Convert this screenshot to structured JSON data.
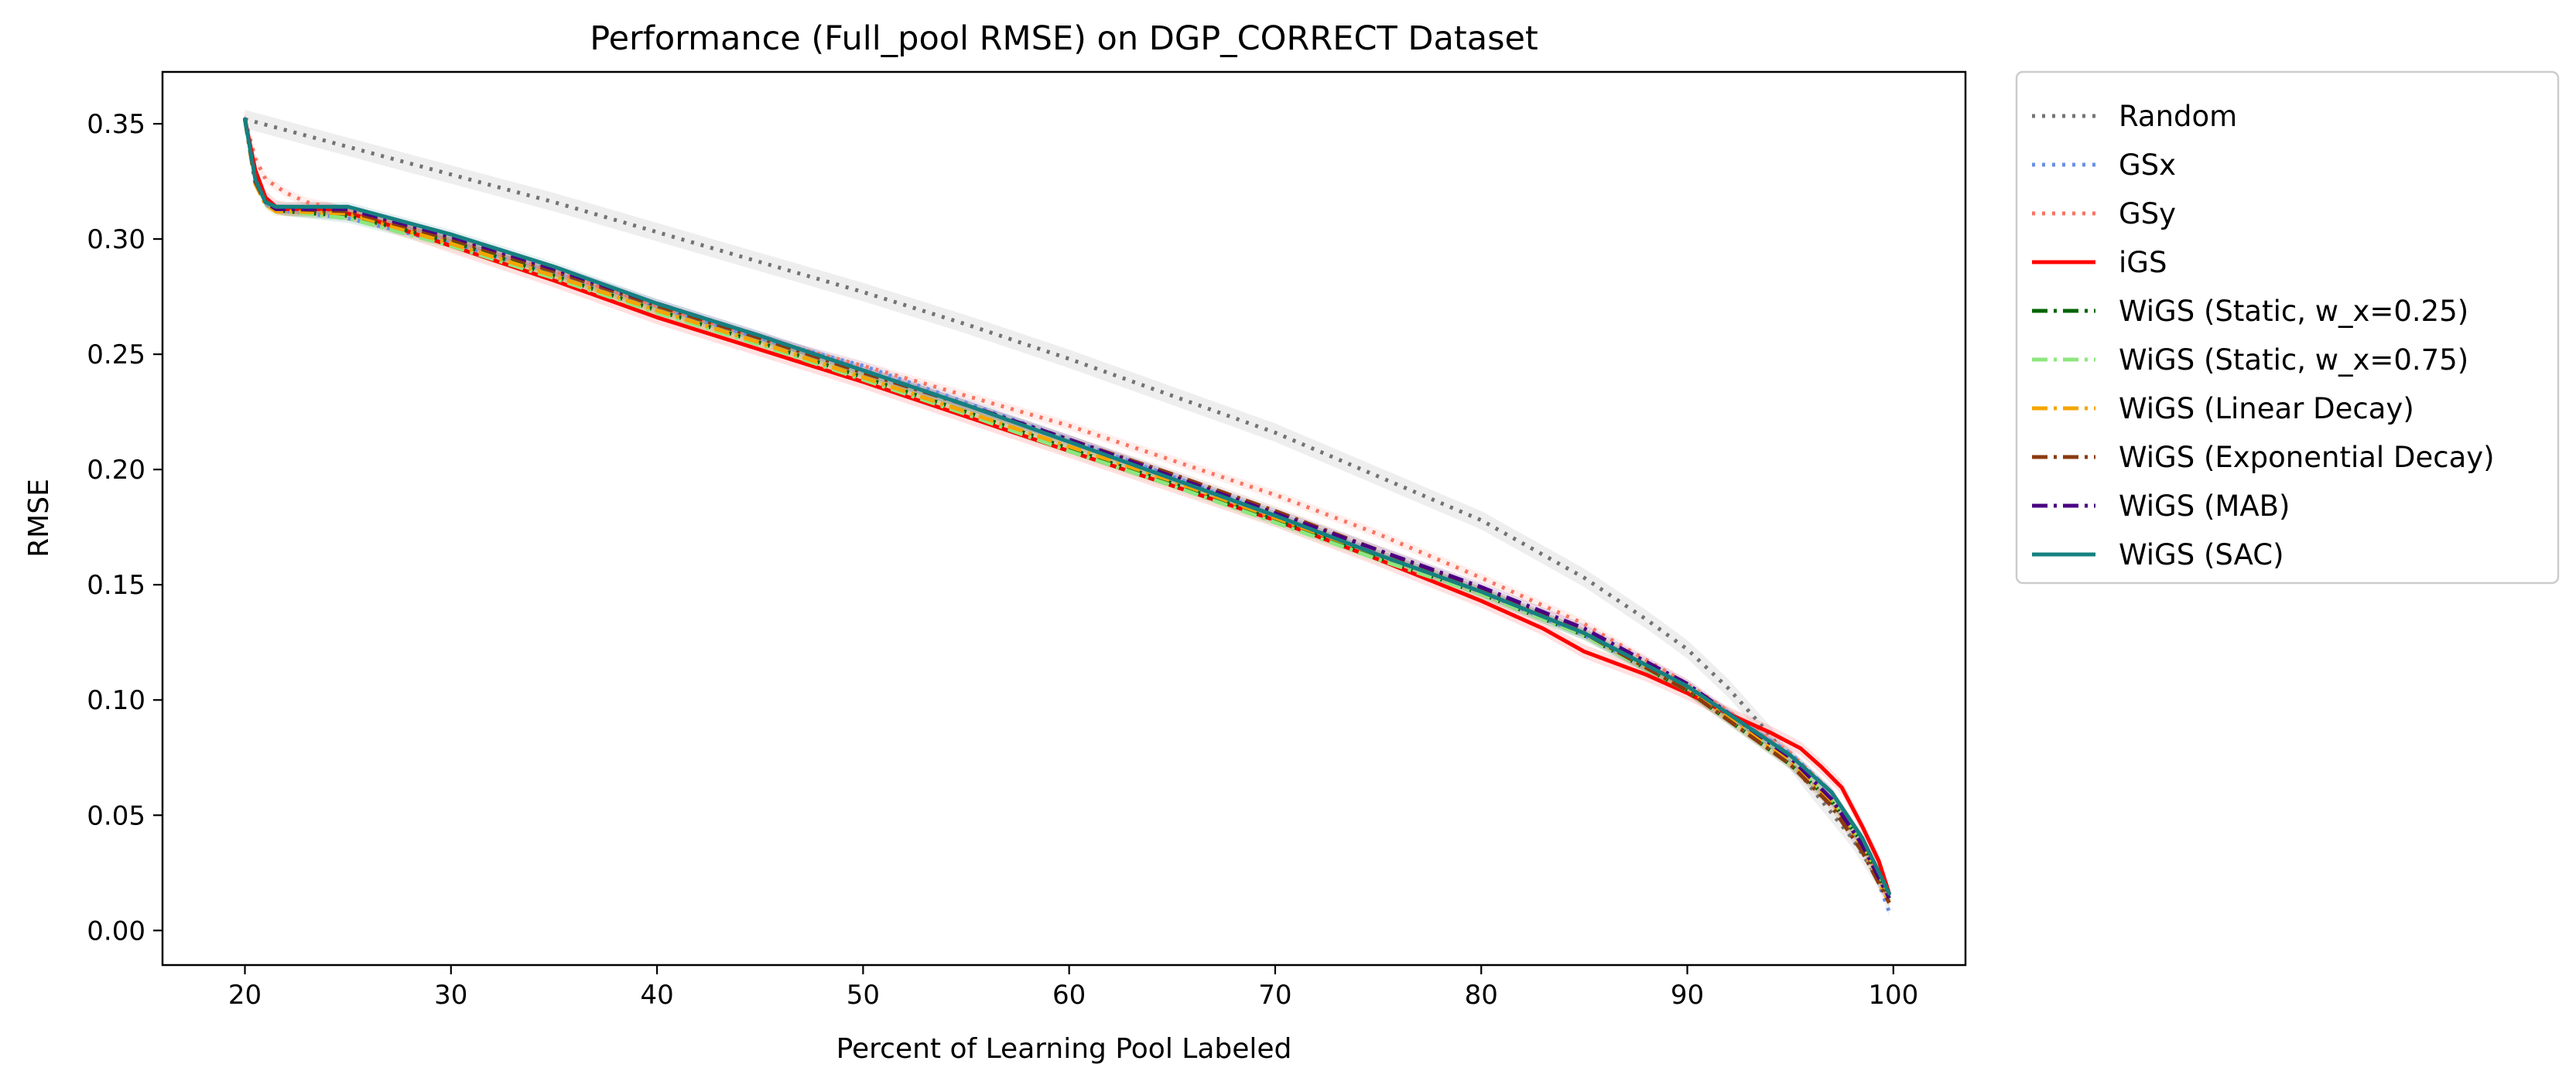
{
  "chart_data": {
    "type": "line",
    "title": "Performance (Full_pool RMSE) on DGP_CORRECT Dataset",
    "xlabel": "Percent of Learning Pool Labeled",
    "ylabel": "RMSE",
    "xlim": [
      16,
      103.5
    ],
    "ylim": [
      -0.015,
      0.3725
    ],
    "xticks": [
      20,
      30,
      40,
      50,
      60,
      70,
      80,
      90,
      100
    ],
    "yticks": [
      0.0,
      0.05,
      0.1,
      0.15,
      0.2,
      0.25,
      0.3,
      0.35
    ],
    "xtick_labels": [
      "20",
      "30",
      "40",
      "50",
      "60",
      "70",
      "80",
      "90",
      "100"
    ],
    "ytick_labels": [
      "0.00",
      "0.05",
      "0.10",
      "0.15",
      "0.20",
      "0.25",
      "0.30",
      "0.35"
    ],
    "grid": false,
    "legend_position": "outside-right",
    "series": [
      {
        "name": "Random",
        "color": "#737373",
        "dash": "dotted",
        "band": 0.004,
        "x": [
          20,
          25,
          30,
          35,
          40,
          45,
          50,
          55,
          60,
          65,
          70,
          75,
          80,
          85,
          88,
          90,
          92,
          94,
          96,
          98,
          99.8
        ],
        "y": [
          0.352,
          0.34,
          0.328,
          0.316,
          0.303,
          0.29,
          0.277,
          0.263,
          0.248,
          0.232,
          0.216,
          0.197,
          0.178,
          0.153,
          0.135,
          0.122,
          0.105,
          0.085,
          0.062,
          0.04,
          0.015
        ]
      },
      {
        "name": "GSx",
        "color": "#6a8fe6",
        "dash": "dotted",
        "band": 0.002,
        "x": [
          20,
          20.5,
          21,
          21.5,
          22,
          25,
          30,
          35,
          40,
          45,
          50,
          55,
          60,
          65,
          70,
          75,
          80,
          85,
          90,
          95,
          97,
          98.5,
          99.8
        ],
        "y": [
          0.352,
          0.327,
          0.316,
          0.313,
          0.312,
          0.309,
          0.298,
          0.285,
          0.27,
          0.257,
          0.245,
          0.229,
          0.213,
          0.197,
          0.18,
          0.163,
          0.147,
          0.128,
          0.105,
          0.077,
          0.06,
          0.04,
          0.008
        ]
      },
      {
        "name": "GSy",
        "color": "#f87462",
        "dash": "dotted",
        "band": 0.002,
        "x": [
          20,
          20.5,
          21,
          22,
          23,
          24,
          25,
          30,
          35,
          40,
          45,
          50,
          55,
          60,
          65,
          70,
          75,
          80,
          85,
          90,
          95,
          97,
          98.5,
          99.8
        ],
        "y": [
          0.352,
          0.335,
          0.326,
          0.32,
          0.316,
          0.314,
          0.312,
          0.3,
          0.286,
          0.271,
          0.257,
          0.245,
          0.232,
          0.219,
          0.204,
          0.189,
          0.172,
          0.153,
          0.133,
          0.107,
          0.077,
          0.06,
          0.04,
          0.013
        ]
      },
      {
        "name": "iGS",
        "color": "#ff0000",
        "dash": "solid",
        "band": 0.003,
        "x": [
          20,
          20.5,
          21,
          21.5,
          22,
          24,
          26,
          30,
          35,
          40,
          45,
          50,
          55,
          60,
          65,
          70,
          75,
          80,
          83,
          85,
          88,
          90,
          92,
          94,
          95.5,
          96.5,
          97.5,
          98.5,
          99.3,
          99.8
        ],
        "y": [
          0.352,
          0.33,
          0.318,
          0.314,
          0.313,
          0.313,
          0.309,
          0.297,
          0.282,
          0.266,
          0.252,
          0.238,
          0.223,
          0.208,
          0.193,
          0.178,
          0.161,
          0.143,
          0.131,
          0.121,
          0.111,
          0.103,
          0.094,
          0.086,
          0.079,
          0.071,
          0.062,
          0.045,
          0.03,
          0.016
        ]
      },
      {
        "name": "WiGS (Static, w_x=0.25)",
        "color": "#006400",
        "dash": "dashdot",
        "band": 0.002,
        "x": [
          20,
          20.5,
          21,
          21.5,
          22,
          25,
          30,
          35,
          40,
          45,
          50,
          55,
          60,
          65,
          70,
          75,
          80,
          85,
          90,
          95,
          97,
          98.5,
          99.8
        ],
        "y": [
          0.352,
          0.325,
          0.316,
          0.313,
          0.312,
          0.31,
          0.299,
          0.284,
          0.269,
          0.255,
          0.24,
          0.225,
          0.209,
          0.194,
          0.178,
          0.162,
          0.146,
          0.128,
          0.104,
          0.072,
          0.056,
          0.038,
          0.014
        ]
      },
      {
        "name": "WiGS (Static, w_x=0.75)",
        "color": "#8ee67f",
        "dash": "dashdot",
        "band": 0.002,
        "x": [
          20,
          20.5,
          21,
          21.5,
          22,
          25,
          30,
          35,
          40,
          45,
          50,
          55,
          60,
          65,
          70,
          75,
          80,
          85,
          90,
          95,
          97,
          98.5,
          99.8
        ],
        "y": [
          0.352,
          0.324,
          0.315,
          0.312,
          0.312,
          0.309,
          0.297,
          0.283,
          0.268,
          0.254,
          0.239,
          0.224,
          0.208,
          0.193,
          0.177,
          0.161,
          0.146,
          0.128,
          0.104,
          0.073,
          0.057,
          0.038,
          0.013
        ]
      },
      {
        "name": "WiGS (Linear Decay)",
        "color": "#f5a500",
        "dash": "dashdot",
        "band": 0.002,
        "x": [
          20,
          20.5,
          21,
          21.5,
          22,
          25,
          30,
          35,
          40,
          45,
          50,
          55,
          60,
          65,
          70,
          75,
          80,
          85,
          90,
          95,
          97,
          98.5,
          99.8
        ],
        "y": [
          0.352,
          0.324,
          0.315,
          0.312,
          0.312,
          0.311,
          0.298,
          0.284,
          0.269,
          0.255,
          0.24,
          0.225,
          0.21,
          0.195,
          0.179,
          0.163,
          0.147,
          0.129,
          0.105,
          0.073,
          0.056,
          0.036,
          0.012
        ]
      },
      {
        "name": "WiGS (Exponential Decay)",
        "color": "#8b3a0f",
        "dash": "dashdot",
        "band": 0.002,
        "x": [
          20,
          20.5,
          21,
          21.5,
          22,
          25,
          30,
          35,
          40,
          45,
          50,
          55,
          60,
          65,
          70,
          75,
          80,
          85,
          90,
          95,
          97,
          98.5,
          99.8
        ],
        "y": [
          0.352,
          0.325,
          0.316,
          0.313,
          0.313,
          0.312,
          0.3,
          0.286,
          0.271,
          0.257,
          0.242,
          0.228,
          0.213,
          0.198,
          0.182,
          0.165,
          0.148,
          0.129,
          0.104,
          0.072,
          0.054,
          0.034,
          0.012
        ]
      },
      {
        "name": "WiGS (MAB)",
        "color": "#4b0082",
        "dash": "dashdot",
        "band": 0.002,
        "x": [
          20,
          20.5,
          21,
          21.5,
          22,
          25,
          30,
          35,
          40,
          45,
          50,
          55,
          60,
          65,
          70,
          75,
          80,
          85,
          90,
          95,
          97,
          98.5,
          99.8
        ],
        "y": [
          0.352,
          0.326,
          0.316,
          0.313,
          0.313,
          0.313,
          0.301,
          0.287,
          0.272,
          0.258,
          0.243,
          0.228,
          0.213,
          0.197,
          0.181,
          0.165,
          0.149,
          0.131,
          0.107,
          0.075,
          0.057,
          0.037,
          0.014
        ]
      },
      {
        "name": "WiGS (SAC)",
        "color": "#168080",
        "dash": "solid",
        "band": 0.002,
        "x": [
          20,
          20.5,
          21,
          21.5,
          22,
          25,
          30,
          35,
          40,
          45,
          50,
          55,
          60,
          65,
          70,
          75,
          80,
          85,
          90,
          95,
          97,
          98.5,
          99.8
        ],
        "y": [
          0.352,
          0.326,
          0.316,
          0.314,
          0.314,
          0.314,
          0.302,
          0.288,
          0.272,
          0.258,
          0.243,
          0.228,
          0.212,
          0.196,
          0.18,
          0.163,
          0.147,
          0.129,
          0.106,
          0.076,
          0.06,
          0.04,
          0.016
        ]
      }
    ]
  }
}
